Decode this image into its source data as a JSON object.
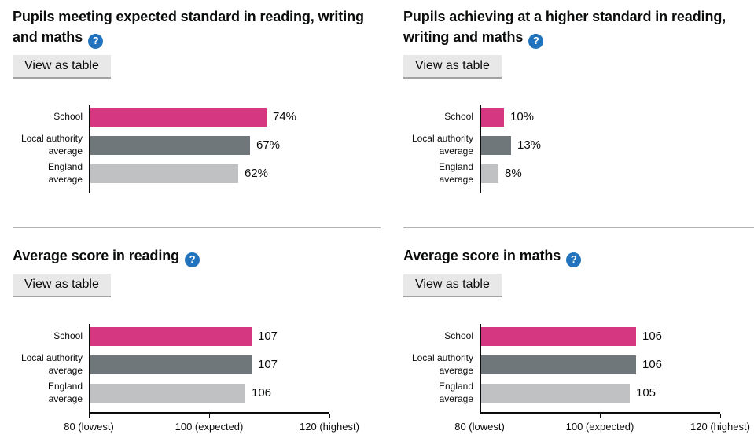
{
  "view_as_table_label": "View as table",
  "help_glyph": "?",
  "colors": {
    "school_bar": "#d53880",
    "local_authority_bar": "#6f777b",
    "england_bar": "#bfc1c3",
    "bar_colors": [
      "#d53880",
      "#6f777b",
      "#bfc1c3"
    ],
    "help_icon": "#2073bc",
    "axis": "#0b0c0c",
    "divider": "#b1b4b6",
    "button_bg": "#e8e8e8",
    "button_shadow": "#a0a2a3",
    "text": "#0b0c0c"
  },
  "chart_data": [
    {
      "type": "bar",
      "title": "Pupils meeting expected standard in reading, writing and maths",
      "categories": [
        "School",
        "Local authority average",
        "England average"
      ],
      "values": [
        74,
        67,
        62
      ],
      "value_labels": [
        "74%",
        "67%",
        "62%"
      ],
      "xlim": [
        0,
        100
      ],
      "orientation": "horizontal",
      "grid": false,
      "x_ticks": null
    },
    {
      "type": "bar",
      "title": "Pupils achieving at a higher standard in reading, writing and maths",
      "categories": [
        "School",
        "Local authority average",
        "England average"
      ],
      "values": [
        10,
        13,
        8
      ],
      "value_labels": [
        "10%",
        "13%",
        "8%"
      ],
      "xlim": [
        0,
        100
      ],
      "orientation": "horizontal",
      "grid": false,
      "x_ticks": null
    },
    {
      "type": "bar",
      "title": "Average score in reading",
      "categories": [
        "School",
        "Local authority average",
        "England average"
      ],
      "values": [
        107,
        107,
        106
      ],
      "value_labels": [
        "107",
        "107",
        "106"
      ],
      "xlim": [
        80,
        120
      ],
      "orientation": "horizontal",
      "grid": false,
      "x_ticks": [
        {
          "value": 80,
          "label": "80 (lowest)"
        },
        {
          "value": 100,
          "label": "100 (expected)"
        },
        {
          "value": 120,
          "label": "120 (highest)"
        }
      ]
    },
    {
      "type": "bar",
      "title": "Average score in maths",
      "categories": [
        "School",
        "Local authority average",
        "England average"
      ],
      "values": [
        106,
        106,
        105
      ],
      "value_labels": [
        "106",
        "106",
        "105"
      ],
      "xlim": [
        80,
        120
      ],
      "orientation": "horizontal",
      "grid": false,
      "x_ticks": [
        {
          "value": 80,
          "label": "80 (lowest)"
        },
        {
          "value": 100,
          "label": "100 (expected)"
        },
        {
          "value": 120,
          "label": "120 (highest)"
        }
      ]
    }
  ]
}
